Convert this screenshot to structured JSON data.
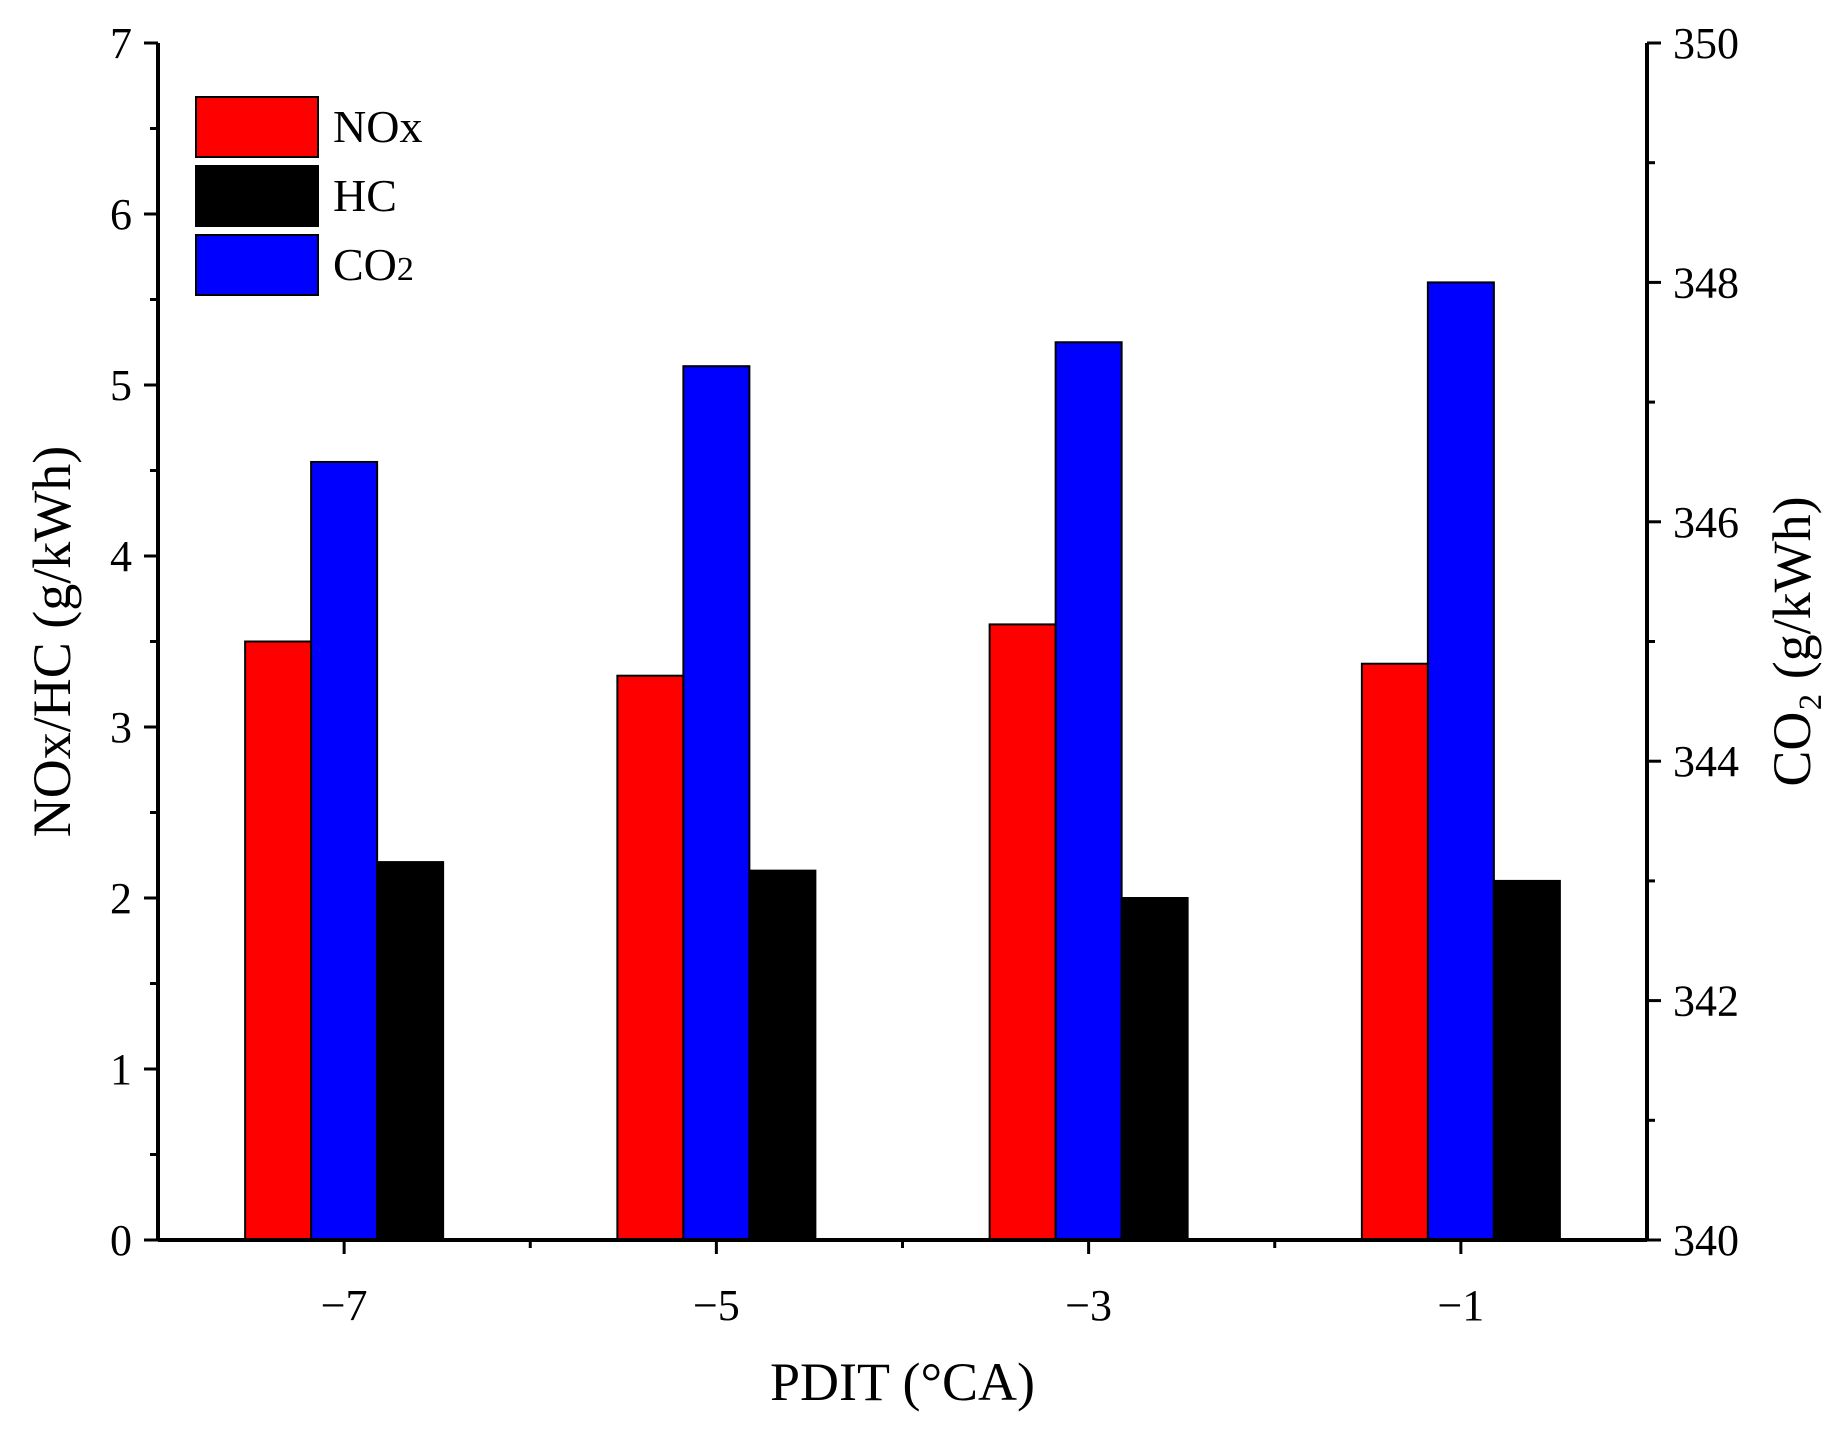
{
  "chart_data": {
    "type": "bar",
    "xlabel": "PDIT (°CA)",
    "ylabel": "NOx/HC (g/kWh)",
    "y2label": "CO₂ (g/kWh)",
    "categories": [
      "−7",
      "−5",
      "−3",
      "−1"
    ],
    "ylim": [
      0,
      7
    ],
    "y2lim": [
      340,
      350
    ],
    "yticks": [
      0,
      1,
      2,
      3,
      4,
      5,
      6,
      7
    ],
    "y2ticks": [
      340,
      342,
      344,
      346,
      348,
      350
    ],
    "grid": false,
    "legend_position": "top-left",
    "series": [
      {
        "name": "NOx",
        "axis": "left",
        "color": "#ff0000",
        "values": [
          3.5,
          3.3,
          3.6,
          3.37
        ]
      },
      {
        "name": "CO2",
        "axis": "right",
        "color": "#0000ff",
        "values": [
          346.5,
          347.3,
          347.5,
          348.0
        ]
      },
      {
        "name": "HC",
        "axis": "left",
        "color": "#000000",
        "values": [
          2.21,
          2.16,
          2.0,
          2.1
        ]
      }
    ],
    "legend_order": [
      "NOx",
      "HC",
      "CO2"
    ]
  }
}
